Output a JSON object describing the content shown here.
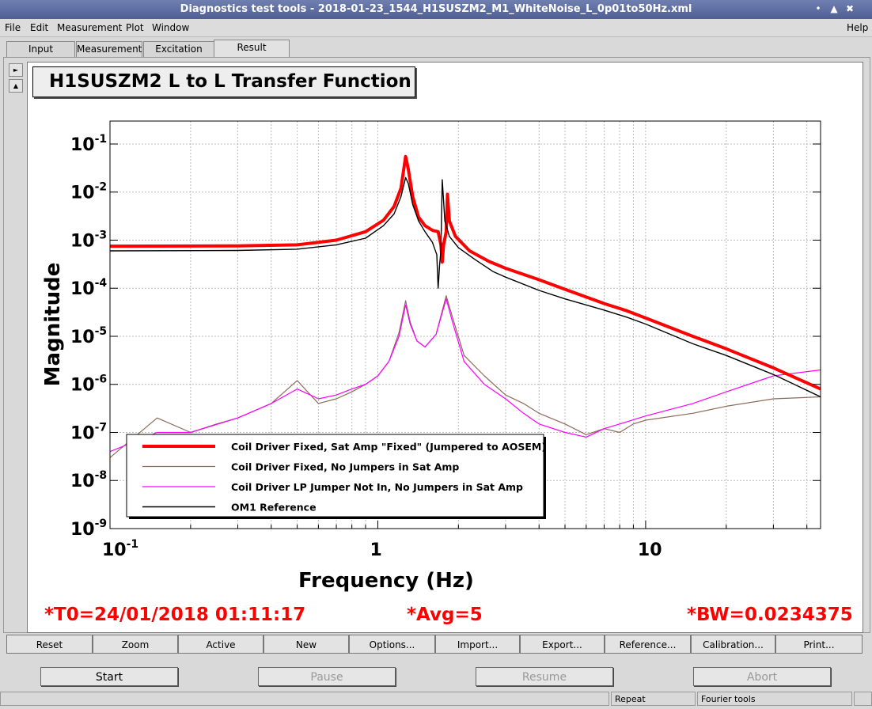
{
  "window": {
    "title": "Diagnostics test tools - 2018-01-23_1544_H1SUSZM2_M1_WhiteNoise_L_0p01to50Hz.xml",
    "controls": [
      "minimize-icon",
      "maximize-icon",
      "close-icon"
    ]
  },
  "menu": {
    "file": "File",
    "edit": "Edit",
    "measurement": "Measurement",
    "plot": "Plot",
    "window": "Window",
    "help": "Help"
  },
  "tabs": [
    "Input",
    "Measurement",
    "Excitation",
    "Result"
  ],
  "active_tab": "Result",
  "plot": {
    "title": "H1SUSZM2 L to L Transfer Function"
  },
  "chart_data": {
    "type": "line",
    "title": "H1SUSZM2 L to L Transfer Function",
    "xlabel": "Frequency (Hz)",
    "ylabel": "Magnitude",
    "x_scale": "log",
    "y_scale": "log",
    "xlim": [
      0.1,
      45
    ],
    "ylim": [
      1e-09,
      0.3
    ],
    "x_ticks": [
      {
        "v": 0.1,
        "base": "10",
        "exp": "-1"
      },
      {
        "v": 1,
        "base": "1",
        "exp": ""
      },
      {
        "v": 10,
        "base": "10",
        "exp": ""
      }
    ],
    "y_ticks": [
      {
        "v": 0.1,
        "base": "10",
        "exp": "-1"
      },
      {
        "v": 0.01,
        "base": "10",
        "exp": "-2"
      },
      {
        "v": 0.001,
        "base": "10",
        "exp": "-3"
      },
      {
        "v": 0.0001,
        "base": "10",
        "exp": "-4"
      },
      {
        "v": 1e-05,
        "base": "10",
        "exp": "-5"
      },
      {
        "v": 1e-06,
        "base": "10",
        "exp": "-6"
      },
      {
        "v": 1e-07,
        "base": "10",
        "exp": "-7"
      },
      {
        "v": 1e-08,
        "base": "10",
        "exp": "-8"
      },
      {
        "v": 1e-09,
        "base": "10",
        "exp": "-9"
      }
    ],
    "grid": true,
    "legend_position": "bottom-left",
    "series": [
      {
        "name": "Coil Driver Fixed, Sat Amp \"Fixed\" (Jumpered to AOSEM)",
        "color": "#ff0000",
        "width": 4,
        "points": [
          [
            0.1,
            0.00075
          ],
          [
            0.3,
            0.00076
          ],
          [
            0.5,
            0.0008
          ],
          [
            0.7,
            0.001
          ],
          [
            0.9,
            0.0015
          ],
          [
            1.05,
            0.0026
          ],
          [
            1.15,
            0.005
          ],
          [
            1.22,
            0.012
          ],
          [
            1.27,
            0.055
          ],
          [
            1.3,
            0.03
          ],
          [
            1.35,
            0.008
          ],
          [
            1.42,
            0.003
          ],
          [
            1.5,
            0.002
          ],
          [
            1.6,
            0.0016
          ],
          [
            1.68,
            0.0015
          ],
          [
            1.72,
            0.0008
          ],
          [
            1.74,
            0.00035
          ],
          [
            1.76,
            0.0008
          ],
          [
            1.8,
            0.0015
          ],
          [
            1.82,
            0.009
          ],
          [
            1.85,
            0.0025
          ],
          [
            1.95,
            0.0012
          ],
          [
            2.2,
            0.0006
          ],
          [
            2.6,
            0.00036
          ],
          [
            3.0,
            0.00026
          ],
          [
            4.0,
            0.00015
          ],
          [
            5.0,
            9.5e-05
          ],
          [
            7.0,
            4.8e-05
          ],
          [
            8.5,
            3.4e-05
          ],
          [
            10,
            2.4e-05
          ],
          [
            15,
            1e-05
          ],
          [
            20,
            5.5e-06
          ],
          [
            30,
            2.2e-06
          ],
          [
            45,
            8e-07
          ]
        ]
      },
      {
        "name": "Coil Driver Fixed, No Jumpers in Sat Amp",
        "color": "#8c6a5a",
        "width": 1.2,
        "points": [
          [
            0.1,
            3e-08
          ],
          [
            0.15,
            2e-07
          ],
          [
            0.2,
            1e-07
          ],
          [
            0.25,
            1.5e-07
          ],
          [
            0.3,
            2e-07
          ],
          [
            0.4,
            4e-07
          ],
          [
            0.5,
            1.2e-06
          ],
          [
            0.6,
            4e-07
          ],
          [
            0.7,
            5e-07
          ],
          [
            0.8,
            7e-07
          ],
          [
            0.9,
            1e-06
          ],
          [
            1.0,
            1.5e-06
          ],
          [
            1.1,
            3e-06
          ],
          [
            1.2,
            1.2e-05
          ],
          [
            1.27,
            5.5e-05
          ],
          [
            1.32,
            2e-05
          ],
          [
            1.4,
            8e-06
          ],
          [
            1.5,
            6e-06
          ],
          [
            1.65,
            1.1e-05
          ],
          [
            1.8,
            7e-05
          ],
          [
            1.9,
            2.5e-05
          ],
          [
            2.1,
            4e-06
          ],
          [
            2.5,
            1.5e-06
          ],
          [
            3.0,
            6e-07
          ],
          [
            3.5,
            4e-07
          ],
          [
            4.0,
            2.5e-07
          ],
          [
            5.0,
            1.5e-07
          ],
          [
            6.0,
            9e-08
          ],
          [
            7.0,
            1.2e-07
          ],
          [
            8.0,
            1e-07
          ],
          [
            9.0,
            1.5e-07
          ],
          [
            10,
            1.8e-07
          ],
          [
            15,
            2.5e-07
          ],
          [
            20,
            3.5e-07
          ],
          [
            30,
            5e-07
          ],
          [
            45,
            5.5e-07
          ]
        ]
      },
      {
        "name": "Coil Driver LP Jumper Not In, No Jumpers in Sat Amp",
        "color": "#ff00ff",
        "width": 1.2,
        "points": [
          [
            0.1,
            4e-08
          ],
          [
            0.15,
            1e-07
          ],
          [
            0.2,
            1e-07
          ],
          [
            0.3,
            2e-07
          ],
          [
            0.4,
            4e-07
          ],
          [
            0.5,
            8e-07
          ],
          [
            0.6,
            5e-07
          ],
          [
            0.7,
            6e-07
          ],
          [
            0.8,
            8e-07
          ],
          [
            0.9,
            1e-06
          ],
          [
            1.0,
            1.5e-06
          ],
          [
            1.1,
            3e-06
          ],
          [
            1.2,
            1e-05
          ],
          [
            1.27,
            4.5e-05
          ],
          [
            1.32,
            1.8e-05
          ],
          [
            1.4,
            8e-06
          ],
          [
            1.5,
            6e-06
          ],
          [
            1.65,
            1.1e-05
          ],
          [
            1.8,
            6e-05
          ],
          [
            1.9,
            2e-05
          ],
          [
            2.1,
            3e-06
          ],
          [
            2.5,
            1e-06
          ],
          [
            3.0,
            5e-07
          ],
          [
            3.5,
            2.5e-07
          ],
          [
            4.0,
            1.5e-07
          ],
          [
            5.0,
            1e-07
          ],
          [
            6.0,
            8e-08
          ],
          [
            7.0,
            1.2e-07
          ],
          [
            8.0,
            1.5e-07
          ],
          [
            10,
            2.2e-07
          ],
          [
            15,
            4e-07
          ],
          [
            20,
            7e-07
          ],
          [
            30,
            1.5e-06
          ],
          [
            45,
            2e-06
          ]
        ]
      },
      {
        "name": "OM1 Reference",
        "color": "#000000",
        "width": 1.4,
        "points": [
          [
            0.1,
            0.0006
          ],
          [
            0.3,
            0.00061
          ],
          [
            0.5,
            0.00065
          ],
          [
            0.7,
            0.0008
          ],
          [
            0.9,
            0.0011
          ],
          [
            1.05,
            0.002
          ],
          [
            1.15,
            0.0035
          ],
          [
            1.22,
            0.008
          ],
          [
            1.27,
            0.02
          ],
          [
            1.3,
            0.015
          ],
          [
            1.35,
            0.0055
          ],
          [
            1.42,
            0.0025
          ],
          [
            1.5,
            0.0015
          ],
          [
            1.6,
            0.0009
          ],
          [
            1.66,
            0.0005
          ],
          [
            1.68,
            0.0001
          ],
          [
            1.7,
            0.0003
          ],
          [
            1.72,
            0.0006
          ],
          [
            1.74,
            0.018
          ],
          [
            1.78,
            0.0025
          ],
          [
            1.85,
            0.0012
          ],
          [
            2.0,
            0.0007
          ],
          [
            2.3,
            0.0004
          ],
          [
            2.7,
            0.00022
          ],
          [
            3.0,
            0.00017
          ],
          [
            4.0,
            9e-05
          ],
          [
            5.0,
            6e-05
          ],
          [
            7.0,
            3.5e-05
          ],
          [
            8.5,
            2.5e-05
          ],
          [
            10,
            1.8e-05
          ],
          [
            15,
            7e-06
          ],
          [
            20,
            4e-06
          ],
          [
            30,
            1.6e-06
          ],
          [
            45,
            5.5e-07
          ]
        ]
      }
    ]
  },
  "status": {
    "t0": "*T0=24/01/2018 01:11:17",
    "avg": "*Avg=5",
    "bw": "*BW=0.0234375"
  },
  "toolbar": [
    "Reset",
    "Zoom",
    "Active",
    "New",
    "Options...",
    "Import...",
    "Export...",
    "Reference...",
    "Calibration...",
    "Print..."
  ],
  "controls": {
    "start": "Start",
    "pause": "Pause",
    "resume": "Resume",
    "abort": "Abort"
  },
  "statusbar": {
    "repeat": "Repeat",
    "fourier": "Fourier tools"
  },
  "colors": {
    "titlebar": "#5a6a9e",
    "status_text": "#ff0000"
  }
}
